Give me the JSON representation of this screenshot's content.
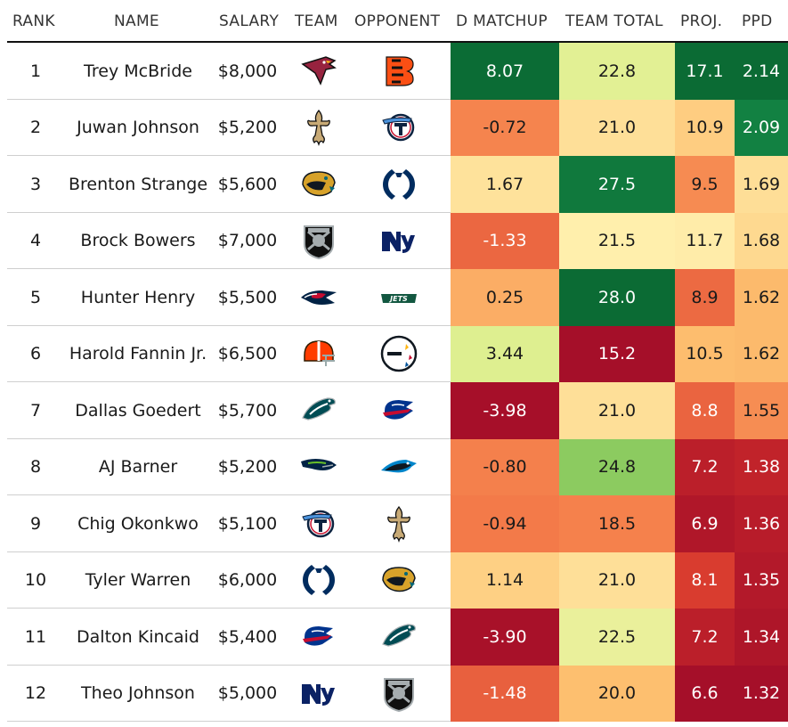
{
  "headers": {
    "rank": "RANK",
    "name": "NAME",
    "salary": "SALARY",
    "team": "TEAM",
    "opponent": "OPPONENT",
    "d_matchup": "D MATCHUP",
    "team_total": "TEAM TOTAL",
    "proj": "PROJ.",
    "ppd": "PPD"
  },
  "colors": {
    "scale": [
      "#a50f29",
      "#d5312b",
      "#f47d4a",
      "#fdbf6f",
      "#fff2b0",
      "#d9ef8b",
      "#8ccb60",
      "#1a9850",
      "#0b6b34"
    ]
  },
  "chart_data": {
    "type": "table",
    "columns": [
      "RANK",
      "NAME",
      "SALARY",
      "TEAM",
      "OPPONENT",
      "D MATCHUP",
      "TEAM TOTAL",
      "PROJ.",
      "PPD"
    ],
    "rows": [
      {
        "rank": "1",
        "name": "Trey McBride",
        "salary": "$8,000",
        "team": "cardinals-logo",
        "opponent": "bengals-logo",
        "d_matchup": "8.07",
        "team_total": "22.8",
        "proj": "17.1",
        "ppd": "2.14"
      },
      {
        "rank": "2",
        "name": "Juwan Johnson",
        "salary": "$5,200",
        "team": "saints-logo",
        "opponent": "titans-logo",
        "d_matchup": "-0.72",
        "team_total": "21.0",
        "proj": "10.9",
        "ppd": "2.09"
      },
      {
        "rank": "3",
        "name": "Brenton Strange",
        "salary": "$5,600",
        "team": "jaguars-logo",
        "opponent": "colts-logo",
        "d_matchup": "1.67",
        "team_total": "27.5",
        "proj": "9.5",
        "ppd": "1.69"
      },
      {
        "rank": "4",
        "name": "Brock Bowers",
        "salary": "$7,000",
        "team": "raiders-logo",
        "opponent": "giants-logo",
        "d_matchup": "-1.33",
        "team_total": "21.5",
        "proj": "11.7",
        "ppd": "1.68"
      },
      {
        "rank": "5",
        "name": "Hunter Henry",
        "salary": "$5,500",
        "team": "patriots-logo",
        "opponent": "jets-logo",
        "d_matchup": "0.25",
        "team_total": "28.0",
        "proj": "8.9",
        "ppd": "1.62"
      },
      {
        "rank": "6",
        "name": "Harold Fannin Jr.",
        "salary": "$6,500",
        "team": "browns-logo",
        "opponent": "steelers-logo",
        "d_matchup": "3.44",
        "team_total": "15.2",
        "proj": "10.5",
        "ppd": "1.62"
      },
      {
        "rank": "7",
        "name": "Dallas Goedert",
        "salary": "$5,700",
        "team": "eagles-logo",
        "opponent": "bills-logo",
        "d_matchup": "-3.98",
        "team_total": "21.0",
        "proj": "8.8",
        "ppd": "1.55"
      },
      {
        "rank": "8",
        "name": "AJ Barner",
        "salary": "$5,200",
        "team": "seahawks-logo",
        "opponent": "panthers-logo",
        "d_matchup": "-0.80",
        "team_total": "24.8",
        "proj": "7.2",
        "ppd": "1.38"
      },
      {
        "rank": "9",
        "name": "Chig Okonkwo",
        "salary": "$5,100",
        "team": "titans-logo",
        "opponent": "saints-logo",
        "d_matchup": "-0.94",
        "team_total": "18.5",
        "proj": "6.9",
        "ppd": "1.36"
      },
      {
        "rank": "10",
        "name": "Tyler Warren",
        "salary": "$6,000",
        "team": "colts-logo",
        "opponent": "jaguars-logo",
        "d_matchup": "1.14",
        "team_total": "21.0",
        "proj": "8.1",
        "ppd": "1.35"
      },
      {
        "rank": "11",
        "name": "Dalton Kincaid",
        "salary": "$5,400",
        "team": "bills-logo",
        "opponent": "eagles-logo",
        "d_matchup": "-3.90",
        "team_total": "22.5",
        "proj": "7.2",
        "ppd": "1.34"
      },
      {
        "rank": "12",
        "name": "Theo Johnson",
        "salary": "$5,000",
        "team": "giants-logo",
        "opponent": "raiders-logo",
        "d_matchup": "-1.48",
        "team_total": "20.0",
        "proj": "6.6",
        "ppd": "1.32"
      }
    ],
    "color_ranges": {
      "d_matchup": [
        -4.0,
        8.1
      ],
      "team_total": [
        15.2,
        28.0
      ],
      "proj": [
        6.6,
        17.1
      ],
      "ppd": [
        1.32,
        2.14
      ]
    }
  }
}
